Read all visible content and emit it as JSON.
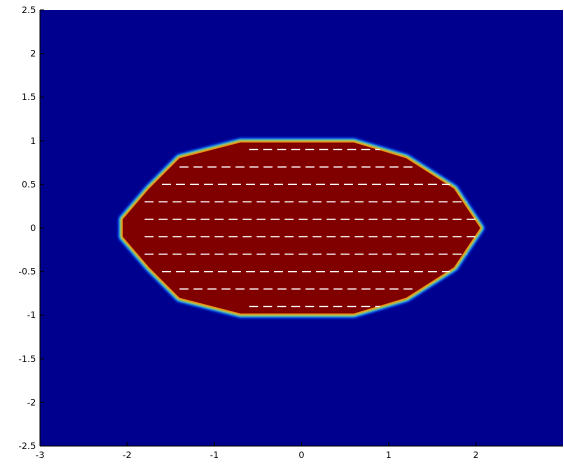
{
  "chart_data": {
    "type": "heatmap",
    "title": "",
    "xlabel": "",
    "ylabel": "",
    "xlim": [
      -3,
      3
    ],
    "ylim": [
      -2.5,
      2.5
    ],
    "x_ticks": [
      "-3",
      "-2",
      "-1",
      "0",
      "1",
      "2"
    ],
    "x_tick_values": [
      -3,
      -2,
      -1,
      0,
      1,
      2
    ],
    "y_ticks": [
      "2.5",
      "2",
      "1.5",
      "1",
      "0.5",
      "0",
      "-0.5",
      "-1",
      "-1.5",
      "-2",
      "-2.5"
    ],
    "y_tick_values": [
      2.5,
      2,
      1.5,
      1,
      0.5,
      0,
      -0.5,
      -1,
      -1.5,
      -2,
      -2.5
    ],
    "colormap": "jet",
    "colors": {
      "background": "#00008f",
      "region": "#800000",
      "markers": "#ffffff"
    },
    "region": {
      "shape": "elongated hexagonal blob",
      "outline": [
        [
          -2.05,
          0.1
        ],
        [
          -1.75,
          0.45
        ],
        [
          -1.4,
          0.8
        ],
        [
          -0.7,
          0.98
        ],
        [
          0.6,
          0.98
        ],
        [
          1.2,
          0.8
        ],
        [
          1.75,
          0.45
        ],
        [
          2.05,
          0.0
        ],
        [
          1.75,
          -0.45
        ],
        [
          1.2,
          -0.8
        ],
        [
          0.6,
          -0.98
        ],
        [
          -0.7,
          -0.98
        ],
        [
          -1.4,
          -0.8
        ],
        [
          -1.75,
          -0.45
        ],
        [
          -2.05,
          -0.1
        ]
      ]
    },
    "segments": [
      {
        "y": 0.9,
        "x": [
          -0.6,
          0.9
        ]
      },
      {
        "y": 0.7,
        "x": [
          -1.4,
          1.3
        ]
      },
      {
        "y": 0.5,
        "x": [
          -1.6,
          1.7
        ]
      },
      {
        "y": 0.3,
        "x": [
          -1.8,
          1.9
        ]
      },
      {
        "y": 0.1,
        "x": [
          -1.8,
          2.0
        ]
      },
      {
        "y": -0.1,
        "x": [
          -1.8,
          2.0
        ]
      },
      {
        "y": -0.3,
        "x": [
          -1.8,
          1.9
        ]
      },
      {
        "y": -0.5,
        "x": [
          -1.6,
          1.7
        ]
      },
      {
        "y": -0.7,
        "x": [
          -1.4,
          1.3
        ]
      },
      {
        "y": -0.9,
        "x": [
          -0.6,
          0.9
        ]
      }
    ]
  }
}
